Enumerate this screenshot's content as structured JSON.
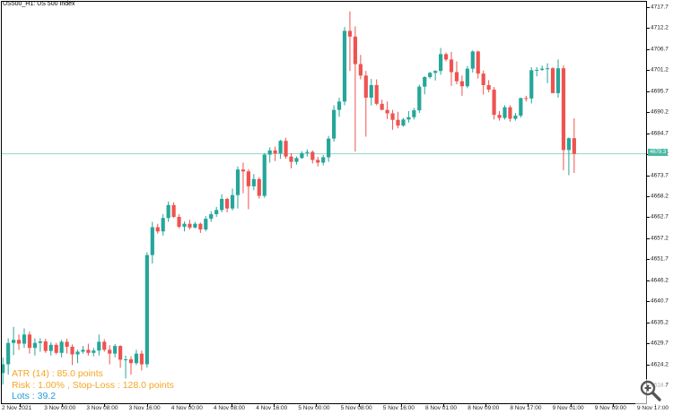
{
  "symbol_title": "US500_H1:  US 500 Index",
  "current_price_label": "4679.3",
  "y_axis_labels": [
    "4717.7",
    "4712.2",
    "4706.7",
    "4701.2",
    "4695.7",
    "4690.2",
    "4684.7",
    "4679.2",
    "4673.7",
    "4668.2",
    "4662.7",
    "4657.2",
    "4651.7",
    "4646.2",
    "4640.7",
    "4635.2",
    "4629.7",
    "4624.2",
    "4618.7"
  ],
  "x_axis_labels": [
    "2 Nov 2021",
    "3 Nov 00:00",
    "3 Nov 08:00",
    "3 Nov 16:00",
    "4 Nov 00:00",
    "4 Nov 08:00",
    "4 Nov 16:00",
    "5 Nov 00:00",
    "5 Nov 08:00",
    "5 Nov 16:00",
    "8 Nov 01:00",
    "8 Nov 09:00",
    "8 Nov 17:00",
    "9 Nov 01:00",
    "9 Nov 09:00",
    "9 Nov 17:00"
  ],
  "indicator": {
    "atr_line": "ATR (14) : 85.0 points",
    "risk_line": "Risk : 1.00% , Stop-Loss : 128.0 points",
    "lots_line": "Lots : 39.2",
    "atr_color": "#f5a623",
    "risk_color": "#f5a623",
    "lots_color": "#1e9ad6"
  },
  "colors": {
    "bull": "#26a69a",
    "bear": "#ef5350",
    "price_line": "#8fd6c8"
  },
  "zoom_icon": "zoom-magnifier-icon",
  "chart_data": {
    "type": "candlestick",
    "title": "US500_H1:  US 500 Index",
    "ylim": [
      4618.7,
      4717.7
    ],
    "current_price": 4679.3,
    "grid": false,
    "candles": [
      {
        "o": 4621.9,
        "h": 4626.0,
        "l": 4618.9,
        "c": 4624.2
      },
      {
        "o": 4624.2,
        "h": 4631.0,
        "l": 4621.5,
        "c": 4629.8
      },
      {
        "o": 4629.8,
        "h": 4634.0,
        "l": 4626.6,
        "c": 4630.6
      },
      {
        "o": 4630.6,
        "h": 4632.0,
        "l": 4628.0,
        "c": 4629.6
      },
      {
        "o": 4629.6,
        "h": 4633.6,
        "l": 4628.5,
        "c": 4632.0
      },
      {
        "o": 4632.0,
        "h": 4632.8,
        "l": 4627.0,
        "c": 4628.5
      },
      {
        "o": 4628.5,
        "h": 4631.0,
        "l": 4626.5,
        "c": 4629.8
      },
      {
        "o": 4629.8,
        "h": 4631.0,
        "l": 4627.5,
        "c": 4630.2
      },
      {
        "o": 4630.2,
        "h": 4630.9,
        "l": 4627.2,
        "c": 4627.7
      },
      {
        "o": 4627.7,
        "h": 4630.0,
        "l": 4626.5,
        "c": 4629.3
      },
      {
        "o": 4629.3,
        "h": 4629.8,
        "l": 4626.8,
        "c": 4627.2
      },
      {
        "o": 4627.2,
        "h": 4630.6,
        "l": 4626.0,
        "c": 4630.1
      },
      {
        "o": 4630.1,
        "h": 4630.9,
        "l": 4627.0,
        "c": 4628.8
      },
      {
        "o": 4628.8,
        "h": 4629.4,
        "l": 4624.0,
        "c": 4626.8
      },
      {
        "o": 4626.8,
        "h": 4628.0,
        "l": 4624.5,
        "c": 4627.5
      },
      {
        "o": 4627.5,
        "h": 4629.0,
        "l": 4627.0,
        "c": 4628.0
      },
      {
        "o": 4628.0,
        "h": 4629.6,
        "l": 4626.5,
        "c": 4627.2
      },
      {
        "o": 4627.2,
        "h": 4628.5,
        "l": 4626.3,
        "c": 4627.8
      },
      {
        "o": 4627.8,
        "h": 4632.0,
        "l": 4626.5,
        "c": 4630.1
      },
      {
        "o": 4630.1,
        "h": 4630.8,
        "l": 4627.5,
        "c": 4628.0
      },
      {
        "o": 4628.0,
        "h": 4629.2,
        "l": 4624.2,
        "c": 4627.0
      },
      {
        "o": 4627.0,
        "h": 4629.5,
        "l": 4626.0,
        "c": 4629.0
      },
      {
        "o": 4629.0,
        "h": 4629.2,
        "l": 4623.3,
        "c": 4625.4
      },
      {
        "o": 4625.4,
        "h": 4626.5,
        "l": 4620.5,
        "c": 4625.5
      },
      {
        "o": 4625.5,
        "h": 4626.3,
        "l": 4621.5,
        "c": 4624.5
      },
      {
        "o": 4624.5,
        "h": 4628.0,
        "l": 4624.0,
        "c": 4627.0
      },
      {
        "o": 4627.0,
        "h": 4627.8,
        "l": 4622.6,
        "c": 4624.2
      },
      {
        "o": 4624.2,
        "h": 4653.5,
        "l": 4623.3,
        "c": 4652.8
      },
      {
        "o": 4652.8,
        "h": 4661.5,
        "l": 4650.6,
        "c": 4660.1
      },
      {
        "o": 4660.1,
        "h": 4661.0,
        "l": 4658.4,
        "c": 4659.0
      },
      {
        "o": 4659.0,
        "h": 4663.5,
        "l": 4657.9,
        "c": 4662.5
      },
      {
        "o": 4662.5,
        "h": 4666.8,
        "l": 4661.5,
        "c": 4665.9
      },
      {
        "o": 4665.9,
        "h": 4666.6,
        "l": 4662.5,
        "c": 4662.8
      },
      {
        "o": 4662.8,
        "h": 4663.5,
        "l": 4659.8,
        "c": 4660.2
      },
      {
        "o": 4660.2,
        "h": 4661.6,
        "l": 4659.0,
        "c": 4661.0
      },
      {
        "o": 4661.0,
        "h": 4662.0,
        "l": 4659.5,
        "c": 4660.0
      },
      {
        "o": 4660.0,
        "h": 4661.5,
        "l": 4659.8,
        "c": 4661.0
      },
      {
        "o": 4661.0,
        "h": 4661.3,
        "l": 4658.6,
        "c": 4659.5
      },
      {
        "o": 4659.5,
        "h": 4663.0,
        "l": 4659.0,
        "c": 4662.3
      },
      {
        "o": 4662.3,
        "h": 4664.3,
        "l": 4661.5,
        "c": 4663.5
      },
      {
        "o": 4663.5,
        "h": 4665.4,
        "l": 4662.8,
        "c": 4664.6
      },
      {
        "o": 4664.6,
        "h": 4668.7,
        "l": 4664.0,
        "c": 4667.5
      },
      {
        "o": 4667.5,
        "h": 4667.8,
        "l": 4664.0,
        "c": 4665.0
      },
      {
        "o": 4665.0,
        "h": 4670.2,
        "l": 4664.5,
        "c": 4668.5
      },
      {
        "o": 4668.5,
        "h": 4676.0,
        "l": 4665.0,
        "c": 4675.2
      },
      {
        "o": 4675.2,
        "h": 4677.0,
        "l": 4669.0,
        "c": 4674.7
      },
      {
        "o": 4674.7,
        "h": 4675.3,
        "l": 4664.8,
        "c": 4670.8
      },
      {
        "o": 4670.8,
        "h": 4674.0,
        "l": 4669.8,
        "c": 4672.7
      },
      {
        "o": 4672.7,
        "h": 4673.2,
        "l": 4667.6,
        "c": 4668.3
      },
      {
        "o": 4668.3,
        "h": 4679.5,
        "l": 4667.8,
        "c": 4679.1
      },
      {
        "o": 4679.1,
        "h": 4681.0,
        "l": 4677.0,
        "c": 4680.2
      },
      {
        "o": 4680.2,
        "h": 4681.2,
        "l": 4677.4,
        "c": 4679.4
      },
      {
        "o": 4679.4,
        "h": 4683.0,
        "l": 4678.0,
        "c": 4682.7
      },
      {
        "o": 4682.7,
        "h": 4683.5,
        "l": 4678.0,
        "c": 4678.6
      },
      {
        "o": 4678.6,
        "h": 4679.5,
        "l": 4675.5,
        "c": 4677.2
      },
      {
        "o": 4677.2,
        "h": 4678.6,
        "l": 4676.5,
        "c": 4678.2
      },
      {
        "o": 4678.2,
        "h": 4680.0,
        "l": 4678.0,
        "c": 4679.5
      },
      {
        "o": 4679.5,
        "h": 4680.5,
        "l": 4678.6,
        "c": 4679.8
      },
      {
        "o": 4679.8,
        "h": 4680.2,
        "l": 4676.8,
        "c": 4677.7
      },
      {
        "o": 4677.7,
        "h": 4678.5,
        "l": 4676.0,
        "c": 4677.0
      },
      {
        "o": 4677.0,
        "h": 4679.0,
        "l": 4676.3,
        "c": 4678.4
      },
      {
        "o": 4678.4,
        "h": 4684.0,
        "l": 4677.2,
        "c": 4683.3
      },
      {
        "o": 4683.3,
        "h": 4692.0,
        "l": 4682.5,
        "c": 4690.8
      },
      {
        "o": 4690.8,
        "h": 4694.0,
        "l": 4689.0,
        "c": 4693.0
      },
      {
        "o": 4693.0,
        "h": 4712.5,
        "l": 4692.0,
        "c": 4711.5
      },
      {
        "o": 4711.5,
        "h": 4716.6,
        "l": 4701.0,
        "c": 4710.0
      },
      {
        "o": 4710.0,
        "h": 4712.7,
        "l": 4679.9,
        "c": 4702.8
      },
      {
        "o": 4702.8,
        "h": 4705.2,
        "l": 4698.8,
        "c": 4699.8
      },
      {
        "o": 4699.8,
        "h": 4701.0,
        "l": 4683.8,
        "c": 4694.0
      },
      {
        "o": 4694.0,
        "h": 4698.9,
        "l": 4692.0,
        "c": 4697.3
      },
      {
        "o": 4697.3,
        "h": 4698.8,
        "l": 4692.0,
        "c": 4692.4
      },
      {
        "o": 4692.4,
        "h": 4693.5,
        "l": 4690.8,
        "c": 4690.8
      },
      {
        "o": 4690.8,
        "h": 4693.0,
        "l": 4688.4,
        "c": 4689.9
      },
      {
        "o": 4689.9,
        "h": 4690.8,
        "l": 4685.6,
        "c": 4688.2
      },
      {
        "o": 4688.2,
        "h": 4690.3,
        "l": 4686.0,
        "c": 4686.7
      },
      {
        "o": 4686.7,
        "h": 4688.7,
        "l": 4686.4,
        "c": 4688.3
      },
      {
        "o": 4688.3,
        "h": 4690.5,
        "l": 4687.5,
        "c": 4688.9
      },
      {
        "o": 4688.9,
        "h": 4691.3,
        "l": 4688.3,
        "c": 4690.7
      },
      {
        "o": 4690.7,
        "h": 4697.4,
        "l": 4690.0,
        "c": 4696.9
      },
      {
        "o": 4696.9,
        "h": 4699.6,
        "l": 4694.9,
        "c": 4699.4
      },
      {
        "o": 4699.4,
        "h": 4700.8,
        "l": 4699.0,
        "c": 4700.5
      },
      {
        "o": 4700.5,
        "h": 4701.2,
        "l": 4698.5,
        "c": 4701.0
      },
      {
        "o": 4701.0,
        "h": 4707.0,
        "l": 4700.0,
        "c": 4705.4
      },
      {
        "o": 4705.4,
        "h": 4705.8,
        "l": 4703.5,
        "c": 4704.0
      },
      {
        "o": 4704.0,
        "h": 4706.0,
        "l": 4697.1,
        "c": 4700.7
      },
      {
        "o": 4700.7,
        "h": 4703.5,
        "l": 4697.5,
        "c": 4698.3
      },
      {
        "o": 4698.3,
        "h": 4699.8,
        "l": 4694.5,
        "c": 4697.0
      },
      {
        "o": 4697.0,
        "h": 4702.3,
        "l": 4696.5,
        "c": 4701.6
      },
      {
        "o": 4701.6,
        "h": 4706.4,
        "l": 4700.6,
        "c": 4706.1
      },
      {
        "o": 4706.1,
        "h": 4706.3,
        "l": 4699.0,
        "c": 4700.3
      },
      {
        "o": 4700.3,
        "h": 4701.1,
        "l": 4694.8,
        "c": 4697.3
      },
      {
        "o": 4697.3,
        "h": 4698.6,
        "l": 4695.4,
        "c": 4696.1
      },
      {
        "o": 4696.1,
        "h": 4696.8,
        "l": 4688.3,
        "c": 4689.5
      },
      {
        "o": 4689.5,
        "h": 4690.5,
        "l": 4688.0,
        "c": 4688.7
      },
      {
        "o": 4688.7,
        "h": 4692.0,
        "l": 4688.3,
        "c": 4691.5
      },
      {
        "o": 4691.5,
        "h": 4692.0,
        "l": 4687.7,
        "c": 4688.5
      },
      {
        "o": 4688.5,
        "h": 4690.0,
        "l": 4688.0,
        "c": 4689.3
      },
      {
        "o": 4689.3,
        "h": 4694.0,
        "l": 4688.8,
        "c": 4693.9
      },
      {
        "o": 4693.9,
        "h": 4694.5,
        "l": 4693.0,
        "c": 4693.8
      },
      {
        "o": 4693.8,
        "h": 4702.0,
        "l": 4692.5,
        "c": 4701.2
      },
      {
        "o": 4701.2,
        "h": 4702.0,
        "l": 4699.6,
        "c": 4701.3
      },
      {
        "o": 4701.3,
        "h": 4702.4,
        "l": 4701.0,
        "c": 4701.6
      },
      {
        "o": 4701.6,
        "h": 4703.0,
        "l": 4697.8,
        "c": 4701.7
      },
      {
        "o": 4701.7,
        "h": 4702.0,
        "l": 4695.2,
        "c": 4695.2
      },
      {
        "o": 4695.2,
        "h": 4704.0,
        "l": 4694.0,
        "c": 4701.7
      },
      {
        "o": 4701.7,
        "h": 4702.5,
        "l": 4675.0,
        "c": 4680.3
      },
      {
        "o": 4680.3,
        "h": 4683.6,
        "l": 4673.7,
        "c": 4683.4
      },
      {
        "o": 4683.4,
        "h": 4688.6,
        "l": 4674.3,
        "c": 4679.3
      }
    ]
  }
}
